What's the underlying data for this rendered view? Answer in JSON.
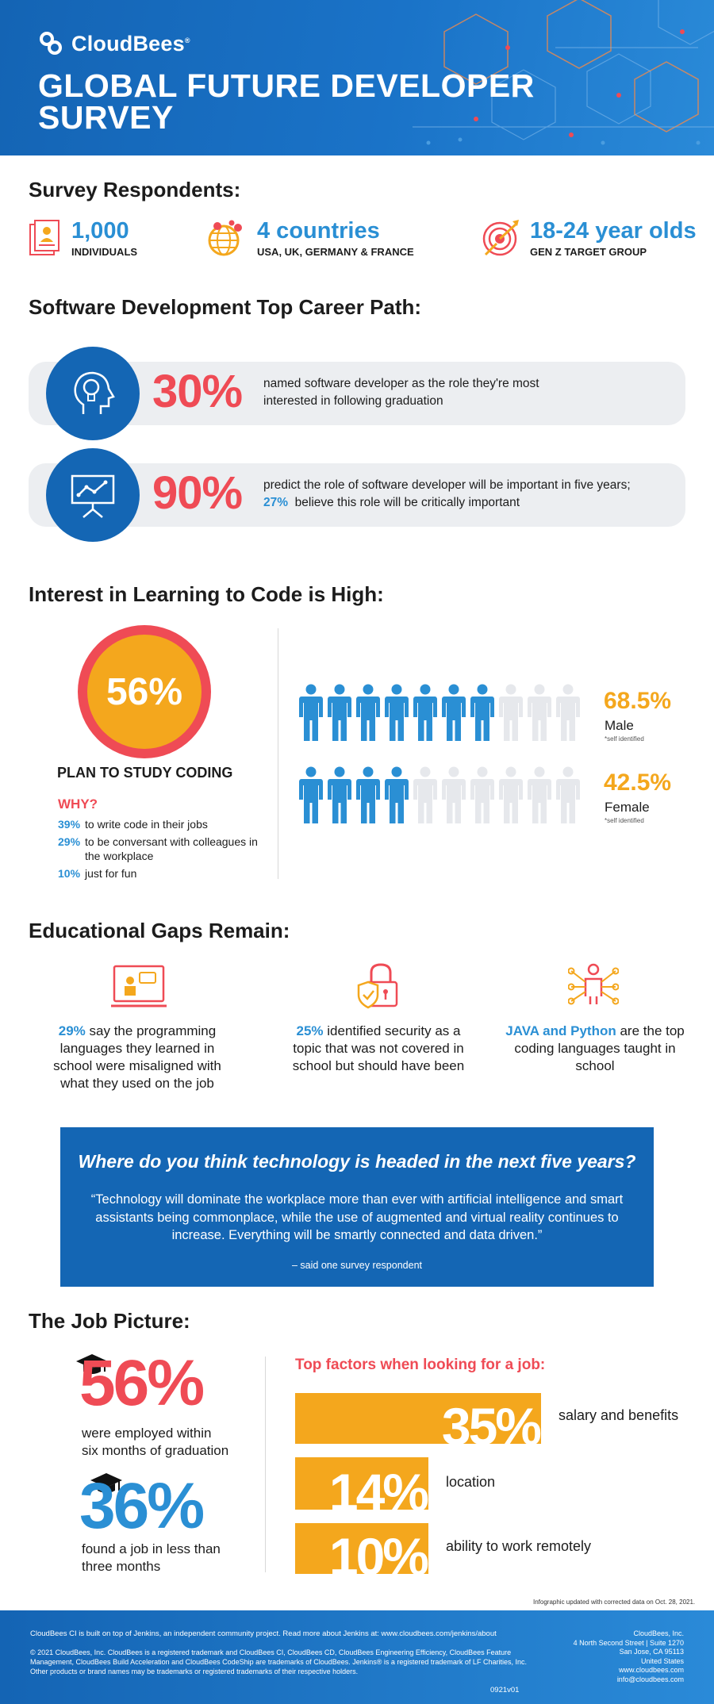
{
  "brand": {
    "name": "CloudBees",
    "mark": "®"
  },
  "header": {
    "title_line1": "GLOBAL FUTURE DEVELOPER",
    "title_line2": "SURVEY"
  },
  "respondents": {
    "title": "Survey Respondents:",
    "items": [
      {
        "value": "1,000",
        "label": "INDIVIDUALS",
        "icon": "documents-icon"
      },
      {
        "value": "4 countries",
        "label": "USA, UK, GERMANY & FRANCE",
        "icon": "globe-icon"
      },
      {
        "value": "18-24 year olds",
        "label": "GEN Z TARGET GROUP",
        "icon": "target-icon"
      }
    ]
  },
  "career": {
    "title": "Software Development Top Career Path:",
    "cards": [
      {
        "pct": "30%",
        "line1": "named software developer as the role they're most",
        "line2": "interested in following graduation",
        "icon": "lightbulb-head-icon"
      },
      {
        "pct": "90%",
        "line1": "predict the role of software developer will be important in five years;",
        "line2_pct": "27%",
        "line2": "believe this role will be critically important",
        "icon": "presentation-chart-icon"
      }
    ]
  },
  "coding": {
    "title": "Interest in Learning to Code is High:",
    "pct": "56%",
    "plan": "PLAN TO STUDY CODING",
    "why": "WHY?",
    "reasons": [
      {
        "pct": "39%",
        "text": "to write code in their jobs"
      },
      {
        "pct": "29%",
        "text": "to be conversant with colleagues in the workplace"
      },
      {
        "pct": "10%",
        "text": "just for fun"
      }
    ],
    "male": {
      "pct": "68.5%",
      "label": "Male",
      "note": "*self identified",
      "filled_of_10": 7
    },
    "female": {
      "pct": "42.5%",
      "label": "Female",
      "note": "*self identified",
      "filled_of_10": 4
    },
    "colors": {
      "filled": "#2a8fd4",
      "empty": "#e6e8ec"
    }
  },
  "gaps": {
    "title": "Educational Gaps Remain:",
    "items": [
      {
        "hl": "29%",
        "text": "say the programming languages they learned in school were misaligned with what they used on the job",
        "icon": "laptop-chat-icon"
      },
      {
        "hl": "25%",
        "text": "identified security as a topic that was not covered in school but should have been",
        "icon": "padlock-shield-icon"
      },
      {
        "hl": "JAVA and Python",
        "text": "are the top coding languages taught in school",
        "icon": "network-person-icon"
      }
    ]
  },
  "quote": {
    "title": "Where do you think technology is headed in the next five years?",
    "body": "“Technology will dominate the workplace more than ever with artificial intelligence and smart assistants being commonplace, while the use of augmented and virtual reality continues to increase. Everything will be smartly connected and data driven.”",
    "attribution": "– said one survey respondent"
  },
  "jobs": {
    "title": "The Job Picture:",
    "stat1": {
      "pct": "56%",
      "line1": "were employed within",
      "line2": "six months of graduation"
    },
    "stat2": {
      "pct": "36%",
      "line1": "found a job in less than",
      "line2": "three months"
    },
    "factors_title": "Top factors when looking for a job:",
    "factors": [
      {
        "pct": "35%",
        "label": "salary and benefits",
        "value": 35
      },
      {
        "pct": "14%",
        "label": "location",
        "value": 14
      },
      {
        "pct": "10%",
        "label": "ability to work remotely",
        "value": 10
      }
    ],
    "updated": "Infographic updated with corrected data on Oct. 28, 2021."
  },
  "footer": {
    "line1": "CloudBees CI is built on top of Jenkins, an independent community project. Read more about Jenkins at: www.cloudbees.com/jenkins/about",
    "legal": "© 2021 CloudBees, Inc. CloudBees is a registered trademark and CloudBees CI, CloudBees CD, CloudBees Engineering Efficiency, CloudBees Feature Management, CloudBees Build Acceleration and CloudBees CodeShip are trademarks of CloudBees. Jenkins® is a registered trademark of LF Charities, Inc. Other products or brand names may be trademarks or registered trademarks of their respective holders.",
    "code": "0921v01",
    "address": [
      "CloudBees, Inc.",
      "4 North Second Street | Suite 1270",
      "San Jose, CA 95113",
      "United States",
      "www.cloudbees.com",
      "info@cloudbees.com"
    ]
  },
  "palette": {
    "blue": "#1466b4",
    "light_blue": "#2a8fd4",
    "red": "#ef4b55",
    "orange": "#f4a71d",
    "gray": "#eceef1"
  }
}
